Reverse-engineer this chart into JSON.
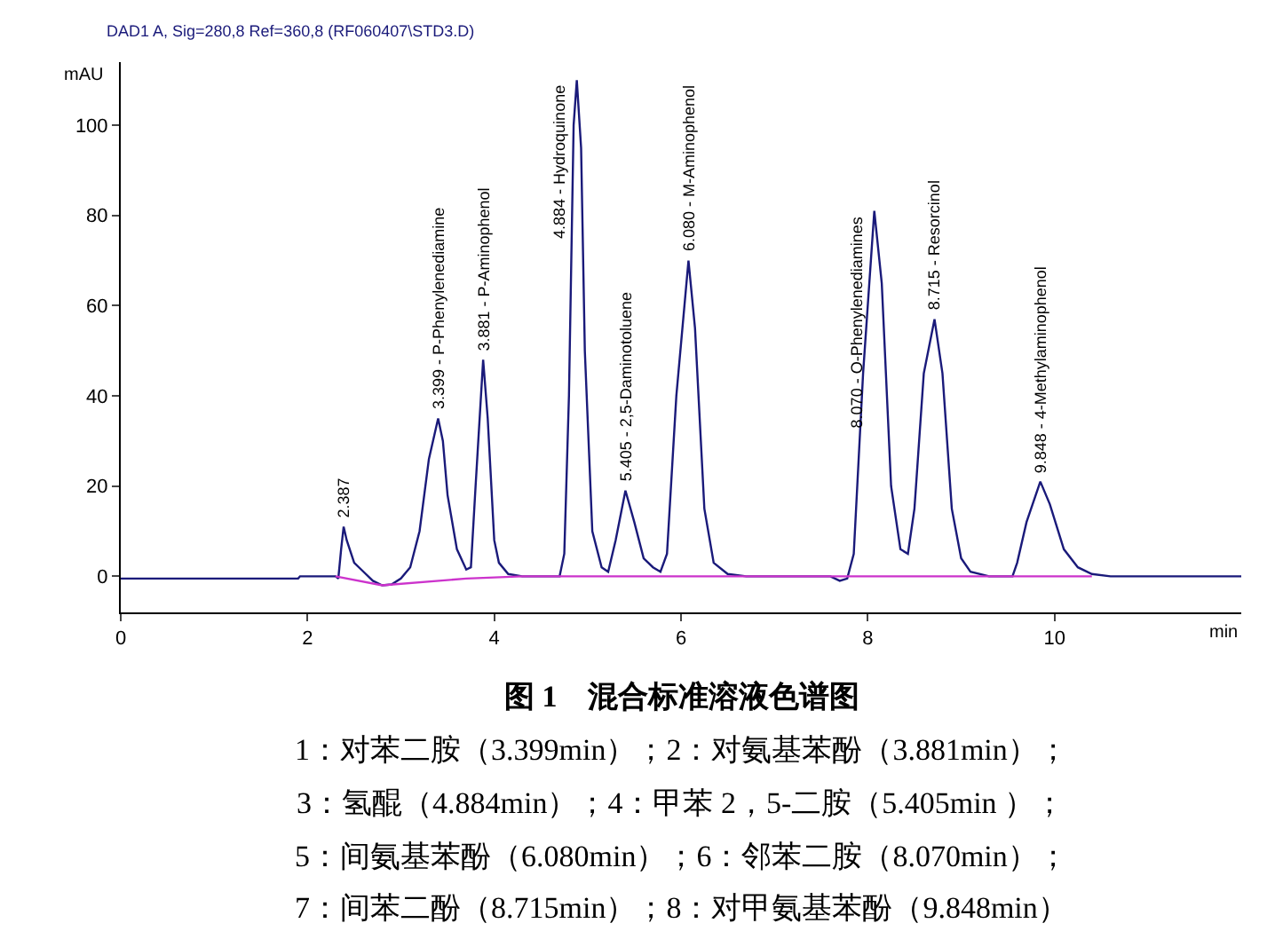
{
  "chart_data": {
    "type": "line",
    "title": "DAD1 A, Sig=280,8 Ref=360,8 (RF060407\\STD3.D)",
    "xlabel": "min",
    "ylabel": "mAU",
    "xlim": [
      0,
      12
    ],
    "xticks": [
      0,
      2,
      4,
      6,
      8,
      10
    ],
    "ylim": [
      -8,
      114
    ],
    "yticks": [
      0,
      20,
      40,
      60,
      80,
      100
    ],
    "marker": "none",
    "line_style": "solid",
    "series": [
      {
        "color": "#1a1a7a",
        "x": [
          0,
          1.9,
          1.92,
          2.3,
          2.33,
          2.36,
          2.387,
          2.42,
          2.5,
          2.6,
          2.7,
          2.8,
          2.9,
          3.0,
          3.1,
          3.2,
          3.3,
          3.399,
          3.45,
          3.5,
          3.6,
          3.7,
          3.75,
          3.8,
          3.881,
          3.93,
          4.0,
          4.05,
          4.15,
          4.3,
          4.7,
          4.75,
          4.8,
          4.85,
          4.884,
          4.93,
          4.97,
          5.05,
          5.15,
          5.22,
          5.3,
          5.405,
          5.5,
          5.6,
          5.7,
          5.78,
          5.85,
          5.95,
          6.08,
          6.15,
          6.25,
          6.35,
          6.5,
          6.7,
          7.6,
          7.7,
          7.78,
          7.85,
          7.95,
          8.07,
          8.15,
          8.25,
          8.35,
          8.43,
          8.5,
          8.6,
          8.715,
          8.8,
          8.9,
          9.0,
          9.1,
          9.3,
          9.55,
          9.6,
          9.7,
          9.848,
          9.95,
          10.1,
          10.25,
          10.4,
          10.6,
          12
        ],
        "values": [
          -0.5,
          -0.5,
          0,
          0,
          -0.5,
          6,
          11,
          8,
          3,
          1,
          -1,
          -2,
          -1.8,
          -0.5,
          2,
          10,
          26,
          35,
          30,
          18,
          6,
          1.5,
          2,
          20,
          48,
          35,
          8,
          3,
          0.5,
          0,
          0,
          5,
          40,
          100,
          110,
          95,
          50,
          10,
          2,
          1,
          8,
          19,
          12,
          4,
          2,
          1,
          5,
          40,
          70,
          55,
          15,
          3,
          0.5,
          0,
          0,
          -1,
          -0.5,
          5,
          45,
          81,
          65,
          20,
          6,
          5,
          15,
          45,
          57,
          45,
          15,
          4,
          1,
          0,
          0,
          3,
          12,
          21,
          16,
          6,
          2,
          0.5,
          0,
          0
        ]
      },
      {
        "color": "#cc33cc",
        "x": [
          2.3,
          2.8,
          3.7,
          4.3,
          10.4
        ],
        "values": [
          0,
          -2,
          -0.5,
          0,
          0
        ]
      }
    ],
    "annotations": [
      {
        "text": "2.387",
        "x": 2.387,
        "y": 11
      },
      {
        "text": "3.399 - P-Phenylenediamine",
        "x": 3.399,
        "y": 35
      },
      {
        "text": "3.881 - P-Aminophenol",
        "x": 3.881,
        "y": 48
      },
      {
        "text": "4.884 - Hydroquinone",
        "x": 4.884,
        "y": 110
      },
      {
        "text": "5.405 - 2,5-Daminotoluene",
        "x": 5.405,
        "y": 19
      },
      {
        "text": "6.080 - M-Aminophenol",
        "x": 6.08,
        "y": 70
      },
      {
        "text": "8.070 - O-Phenylenediamines",
        "x": 8.07,
        "y": 81
      },
      {
        "text": "8.715 - Resorcinol",
        "x": 8.715,
        "y": 57
      },
      {
        "text": "9.848 - 4-Methylaminophenol",
        "x": 9.848,
        "y": 21
      },
      "图 1　混合标准溶液色谱图",
      "1：对苯二胺（3.399min）；2：对氨基苯酚（3.881min）；",
      "3：氢醌（4.884min）；4：甲苯 2，5-二胺（5.405min ）；",
      "5：间氨基苯酚（6.080min）；6：邻苯二胺（8.070min）；",
      "7：间苯二酚（8.715min）；8：对甲氨基苯酚（9.848min）"
    ]
  }
}
